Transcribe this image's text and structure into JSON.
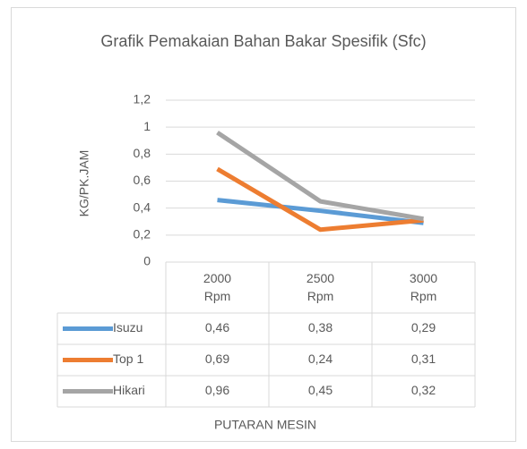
{
  "chart_data": {
    "type": "line",
    "title": "Grafik Pemakaian Bahan Bakar Spesifik (Sfc)",
    "x_label": "PUTARAN MESIN",
    "y_label": "KG/PK.JAM",
    "categories": [
      "2000 Rpm",
      "2500 Rpm",
      "3000 Rpm"
    ],
    "series": [
      {
        "name": "Isuzu",
        "color": "#5b9bd5",
        "values": [
          0.46,
          0.38,
          0.29
        ],
        "value_labels": [
          "0,46",
          "0,38",
          "0,29"
        ]
      },
      {
        "name": "Top 1",
        "color": "#ed7d31",
        "values": [
          0.69,
          0.24,
          0.31
        ],
        "value_labels": [
          "0,69",
          "0,24",
          "0,31"
        ]
      },
      {
        "name": "Hikari",
        "color": "#a5a5a5",
        "values": [
          0.96,
          0.45,
          0.32
        ],
        "value_labels": [
          "0,96",
          "0,45",
          "0,32"
        ]
      }
    ],
    "ylim": [
      0,
      1.2
    ],
    "yticks": [
      0,
      {
        "value": 0.2,
        "label": "0,2"
      },
      {
        "value": 0.4,
        "label": "0,4"
      },
      {
        "value": 0.6,
        "label": "0,6"
      },
      {
        "value": 0.8,
        "label": "0,8"
      },
      1,
      {
        "value": 1.2,
        "label": "1,2"
      }
    ],
    "grid": true
  }
}
